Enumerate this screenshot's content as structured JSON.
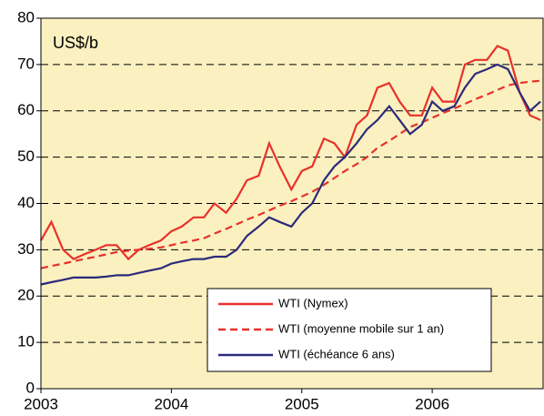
{
  "chart_data": {
    "type": "line",
    "y_axis_label": "US$/b",
    "x": [
      2003.0,
      2003.08,
      2003.17,
      2003.25,
      2003.33,
      2003.42,
      2003.5,
      2003.58,
      2003.67,
      2003.75,
      2003.83,
      2003.92,
      2004.0,
      2004.08,
      2004.17,
      2004.25,
      2004.33,
      2004.42,
      2004.5,
      2004.58,
      2004.67,
      2004.75,
      2004.83,
      2004.92,
      2005.0,
      2005.08,
      2005.17,
      2005.25,
      2005.33,
      2005.42,
      2005.5,
      2005.58,
      2005.67,
      2005.75,
      2005.83,
      2005.92,
      2006.0,
      2006.08,
      2006.17,
      2006.25,
      2006.33,
      2006.42,
      2006.5,
      2006.58,
      2006.67,
      2006.75,
      2006.83
    ],
    "series": [
      {
        "name": "WTI (Nymex)",
        "color": "#e8312a",
        "dashed": false,
        "values": [
          32,
          36,
          30,
          28,
          29,
          30,
          31,
          31,
          28,
          30,
          31,
          32,
          34,
          35,
          37,
          37,
          40,
          38,
          41,
          45,
          46,
          53,
          48,
          43,
          47,
          48,
          54,
          53,
          50,
          57,
          59,
          65,
          66,
          62,
          59,
          59,
          65,
          62,
          62,
          70,
          71,
          71,
          74,
          73,
          64,
          59,
          58
        ]
      },
      {
        "name": "WTI (moyenne mobile sur 1 an)",
        "color": "#e8312a",
        "dashed": true,
        "values": [
          26,
          26.5,
          27,
          27.5,
          28,
          28.5,
          29,
          29.5,
          29.8,
          30,
          30.2,
          30.5,
          31,
          31.5,
          32,
          32.5,
          33.5,
          34.5,
          35.5,
          36.5,
          37.5,
          38.5,
          39.5,
          40.5,
          41.5,
          42.5,
          44,
          45.5,
          47,
          48.5,
          50,
          52,
          53.5,
          55,
          56.5,
          57.5,
          58.5,
          59.5,
          60.5,
          61.5,
          62.5,
          63.5,
          64.5,
          65.5,
          66,
          66.3,
          66.5
        ]
      },
      {
        "name": "WTI (échéance 6 ans)",
        "color": "#2b2a7a",
        "dashed": false,
        "values": [
          22.5,
          23,
          23.5,
          24,
          24,
          24,
          24.2,
          24.5,
          24.5,
          25,
          25.5,
          26,
          27,
          27.5,
          28,
          28,
          28.5,
          28.5,
          30,
          33,
          35,
          37,
          36,
          35,
          38,
          40,
          45,
          48,
          50,
          53,
          56,
          58,
          61,
          58,
          55,
          57,
          62,
          60,
          61,
          65,
          68,
          69,
          70,
          69,
          64,
          60,
          62
        ]
      }
    ],
    "xlim": [
      2003,
      2006.85
    ],
    "xticks": [
      2003,
      2004,
      2005,
      2006
    ],
    "ylim": [
      0,
      80
    ],
    "yticks": [
      0,
      10,
      20,
      30,
      40,
      50,
      60,
      70,
      80
    ],
    "grid": true,
    "legend": "lower right"
  }
}
